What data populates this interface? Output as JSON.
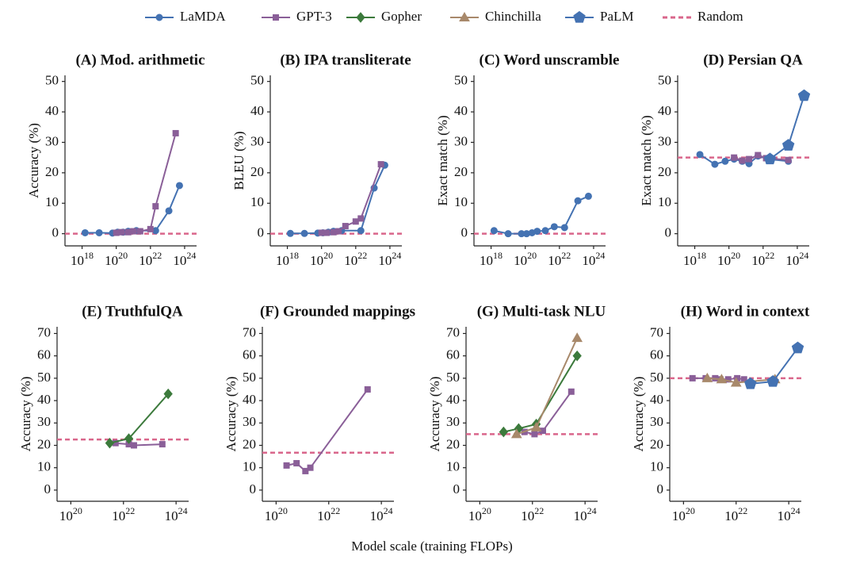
{
  "x_label": "Model scale (training FLOPs)",
  "legend": [
    {
      "name": "LaMDA",
      "color": "#4472b2",
      "marker": "circle"
    },
    {
      "name": "GPT-3",
      "color": "#8a5f98",
      "marker": "square"
    },
    {
      "name": "Gopher",
      "color": "#3c7a3c",
      "marker": "diamond"
    },
    {
      "name": "Chinchilla",
      "color": "#a8896b",
      "marker": "triangle"
    },
    {
      "name": "PaLM",
      "color": "#4472b2",
      "marker": "pentagon"
    },
    {
      "name": "Random",
      "color": "#d9668b",
      "marker": "dash"
    }
  ],
  "chart_data": [
    {
      "type": "line",
      "title": "(A) Mod. arithmetic",
      "y_label": "Accuracy (%)",
      "log_x": true,
      "xlim": [
        1e+17,
        5e+24
      ],
      "ylim": [
        -4,
        52
      ],
      "xticks": [
        {
          "value": 1e+18,
          "label": "10^18"
        },
        {
          "value": 1e+20,
          "label": "10^20"
        },
        {
          "value": 1e+22,
          "label": "10^22"
        },
        {
          "value": 1e+24,
          "label": "10^24"
        }
      ],
      "yticks": [
        0,
        10,
        20,
        30,
        40,
        50
      ],
      "baseline": 0,
      "series": [
        {
          "name": "LaMDA",
          "x": [
            1.5e+18,
            1e+19,
            6e+19,
            1.2e+20,
            2.5e+20,
            5e+20,
            1.5e+21,
            2e+22,
            1.2e+23,
            5e+23
          ],
          "values": [
            0.3,
            0.3,
            0.2,
            0.5,
            0.5,
            0.8,
            1,
            1,
            7.5,
            15.8
          ]
        },
        {
          "name": "GPT-3",
          "x": [
            1e+20,
            2e+20,
            5e+20,
            1e+21,
            2.5e+21,
            1e+22,
            2e+22,
            3e+23
          ],
          "values": [
            0.3,
            0.5,
            0.5,
            0.8,
            0.8,
            1.5,
            9,
            33
          ]
        }
      ]
    },
    {
      "type": "line",
      "title": "(B) IPA transliterate",
      "y_label": "BLEU (%)",
      "log_x": true,
      "xlim": [
        1e+17,
        5e+24
      ],
      "ylim": [
        -4,
        52
      ],
      "xticks": [
        {
          "value": 1e+18,
          "label": "10^18"
        },
        {
          "value": 1e+20,
          "label": "10^20"
        },
        {
          "value": 1e+22,
          "label": "10^22"
        },
        {
          "value": 1e+24,
          "label": "10^24"
        }
      ],
      "yticks": [
        0,
        10,
        20,
        30,
        40,
        50
      ],
      "baseline": 0,
      "series": [
        {
          "name": "LaMDA",
          "x": [
            1.5e+18,
            1e+19,
            6e+19,
            1.2e+20,
            2.5e+20,
            5e+20,
            1.5e+21,
            2e+22,
            1.2e+23,
            5e+23
          ],
          "values": [
            0.1,
            0.1,
            0.2,
            0.3,
            0.5,
            0.8,
            1,
            1,
            15,
            22.5
          ]
        },
        {
          "name": "GPT-3",
          "x": [
            1e+20,
            2e+20,
            5e+20,
            1e+21,
            2.5e+21,
            1e+22,
            2e+22,
            3e+23
          ],
          "values": [
            0.3,
            0.3,
            0.5,
            0.8,
            2.5,
            4,
            5,
            22.8
          ]
        }
      ]
    },
    {
      "type": "line",
      "title": "(C) Word unscramble",
      "y_label": "Exact match (%)",
      "log_x": true,
      "xlim": [
        1e+17,
        5e+24
      ],
      "ylim": [
        -4,
        52
      ],
      "xticks": [
        {
          "value": 1e+18,
          "label": "10^18"
        },
        {
          "value": 1e+20,
          "label": "10^20"
        },
        {
          "value": 1e+22,
          "label": "10^22"
        },
        {
          "value": 1e+24,
          "label": "10^24"
        }
      ],
      "yticks": [
        0,
        10,
        20,
        30,
        40,
        50
      ],
      "baseline": 0,
      "series": [
        {
          "name": "LaMDA",
          "x": [
            1.5e+18,
            1e+19,
            6e+19,
            1.2e+20,
            2.5e+20,
            5e+20,
            1.5e+21,
            5e+21,
            2e+22,
            1.2e+23,
            5e+23
          ],
          "values": [
            1,
            0,
            0,
            0,
            0.3,
            0.8,
            1,
            2.3,
            2,
            10.8,
            12.3
          ]
        }
      ]
    },
    {
      "type": "line",
      "title": "(D) Persian QA",
      "y_label": "Exact match (%)",
      "log_x": true,
      "xlim": [
        1e+17,
        5e+24
      ],
      "ylim": [
        -4,
        52
      ],
      "xticks": [
        {
          "value": 1e+18,
          "label": "10^18"
        },
        {
          "value": 1e+20,
          "label": "10^20"
        },
        {
          "value": 1e+22,
          "label": "10^22"
        },
        {
          "value": 1e+24,
          "label": "10^24"
        }
      ],
      "yticks": [
        0,
        10,
        20,
        30,
        40,
        50
      ],
      "baseline": 25,
      "series": [
        {
          "name": "LaMDA",
          "x": [
            2e+18,
            1.5e+19,
            6e+19,
            2e+20,
            6e+20,
            1.5e+21,
            5e+21,
            2e+22,
            3e+23
          ],
          "values": [
            26,
            22.8,
            23.8,
            24.5,
            23.8,
            23,
            25.5,
            24.5,
            23.8
          ]
        },
        {
          "name": "GPT-3",
          "x": [
            2e+20,
            6e+20,
            1.5e+21,
            5e+21,
            1.5e+22,
            3e+23
          ],
          "values": [
            25,
            24,
            24.5,
            25.8,
            24.8,
            24.2
          ]
        },
        {
          "name": "PaLM",
          "x": [
            2.5e+22,
            3e+23,
            2.5e+24
          ],
          "values": [
            24.5,
            29,
            45.3
          ]
        }
      ]
    },
    {
      "type": "line",
      "title": "(E) TruthfulQA",
      "y_label": "Accuracy (%)",
      "log_x": true,
      "xlim": [
        3e+19,
        3e+24
      ],
      "ylim": [
        -5,
        73
      ],
      "xticks": [
        {
          "value": 1e+20,
          "label": "10^20"
        },
        {
          "value": 1e+22,
          "label": "10^22"
        },
        {
          "value": 1e+24,
          "label": "10^24"
        }
      ],
      "yticks": [
        0,
        10,
        20,
        30,
        40,
        50,
        60,
        70
      ],
      "baseline": 22.6,
      "series": [
        {
          "name": "GPT-3",
          "x": [
            5e+21,
            1.6e+22,
            2.5e+22,
            3e+23
          ],
          "values": [
            21,
            20.5,
            20,
            20.5
          ]
        },
        {
          "name": "Gopher",
          "x": [
            3e+21,
            1.6e+22,
            5e+23
          ],
          "values": [
            21,
            23,
            43
          ]
        }
      ]
    },
    {
      "type": "line",
      "title": "(F) Grounded mappings",
      "y_label": "Accuracy (%)",
      "log_x": true,
      "xlim": [
        3e+19,
        3e+24
      ],
      "ylim": [
        -5,
        73
      ],
      "xticks": [
        {
          "value": 1e+20,
          "label": "10^20"
        },
        {
          "value": 1e+22,
          "label": "10^22"
        },
        {
          "value": 1e+24,
          "label": "10^24"
        }
      ],
      "yticks": [
        0,
        10,
        20,
        30,
        40,
        50,
        60,
        70
      ],
      "baseline": 16.7,
      "series": [
        {
          "name": "GPT-3",
          "x": [
            2.5e+20,
            6e+20,
            1.3e+21,
            2e+21,
            3e+23
          ],
          "values": [
            11,
            12,
            8.5,
            10,
            45
          ]
        }
      ]
    },
    {
      "type": "line",
      "title": "(G) Multi-task NLU",
      "y_label": "Accuracy (%)",
      "log_x": true,
      "xlim": [
        3e+19,
        3e+24
      ],
      "ylim": [
        -5,
        73
      ],
      "xticks": [
        {
          "value": 1e+20,
          "label": "10^20"
        },
        {
          "value": 1e+22,
          "label": "10^22"
        },
        {
          "value": 1e+24,
          "label": "10^24"
        }
      ],
      "yticks": [
        0,
        10,
        20,
        30,
        40,
        50,
        60,
        70
      ],
      "baseline": 25,
      "series": [
        {
          "name": "GPT-3",
          "x": [
            5e+21,
            1.2e+22,
            2.5e+22,
            3e+23
          ],
          "values": [
            26,
            25,
            26.5,
            44
          ]
        },
        {
          "name": "Gopher",
          "x": [
            8e+20,
            3e+21,
            1.4e+22,
            5e+23
          ],
          "values": [
            26,
            27.5,
            29.5,
            60
          ]
        },
        {
          "name": "Chinchilla",
          "x": [
            2.5e+21,
            1.4e+22,
            5e+23
          ],
          "values": [
            25,
            28,
            68
          ]
        }
      ]
    },
    {
      "type": "line",
      "title": "(H) Word in context",
      "y_label": "Accuracy (%)",
      "log_x": true,
      "xlim": [
        3e+19,
        3e+24
      ],
      "ylim": [
        -5,
        73
      ],
      "xticks": [
        {
          "value": 1e+20,
          "label": "10^20"
        },
        {
          "value": 1e+22,
          "label": "10^22"
        },
        {
          "value": 1e+24,
          "label": "10^24"
        }
      ],
      "yticks": [
        0,
        10,
        20,
        30,
        40,
        50,
        60,
        70
      ],
      "baseline": 50,
      "series": [
        {
          "name": "GPT-3",
          "x": [
            2.2e+20,
            7e+20,
            1.6e+21,
            2.5e+21,
            5e+21,
            1.1e+22,
            2e+22
          ],
          "values": [
            50,
            50,
            50,
            49.5,
            49.5,
            50,
            49.5
          ]
        },
        {
          "name": "Chinchilla",
          "x": [
            8e+20,
            2.8e+21,
            1e+22,
            3e+23
          ],
          "values": [
            50,
            49.5,
            48,
            49.5
          ]
        },
        {
          "name": "PaLM",
          "x": [
            3.5e+22,
            2.5e+23,
            2.2e+24
          ],
          "values": [
            47.5,
            48.5,
            63.5
          ]
        }
      ]
    }
  ]
}
